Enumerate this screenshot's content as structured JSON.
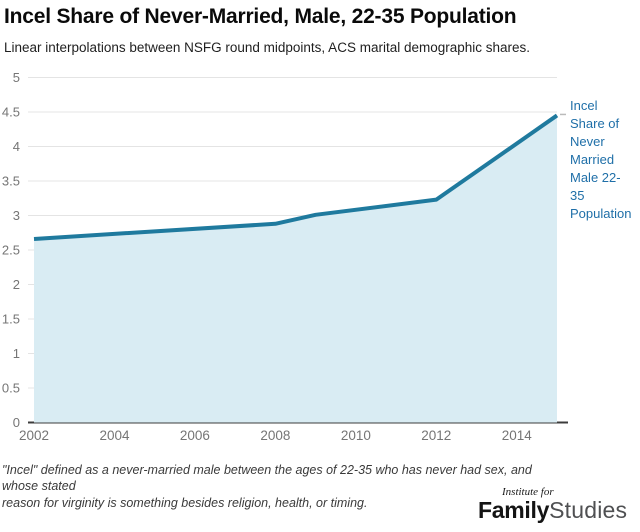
{
  "header": {
    "title": "Incel Share of Never-Married, Male, 22-35 Population",
    "subtitle": "Linear interpolations between NSFG round midpoints, ACS marital demographic shares."
  },
  "chart_data": {
    "type": "area",
    "title": "Incel Share of Never-Married, Male, 22-35 Population",
    "subtitle": "Linear interpolations between NSFG round midpoints, ACS marital demographic shares.",
    "series": [
      {
        "name": "Incel Share of Never Married Male 22-35 Population",
        "x": [
          2002,
          2008,
          2009,
          2012,
          2015
        ],
        "values": [
          2.66,
          2.88,
          3.01,
          3.23,
          4.45
        ]
      }
    ],
    "xlabel": "",
    "ylabel": "",
    "xlim": [
      2002,
      2015
    ],
    "ylim": [
      0,
      5
    ],
    "xticks": [
      2002,
      2004,
      2006,
      2008,
      2010,
      2012,
      2014
    ],
    "yticks": [
      0,
      0.5,
      1,
      1.5,
      2,
      2.5,
      3,
      3.5,
      4,
      4.5,
      5
    ],
    "grid": "horizontal",
    "legend_position": "right",
    "line_color": "#1f7a9e",
    "fill_color": "#d9ecf3",
    "gridline_color": "#e4e4e4",
    "axis_color": "#3c3c3c",
    "tick_label_color": "#757575",
    "legend_text_color": "#1f6fa8"
  },
  "legend": {
    "label": "Incel\nShare of\nNever\nMarried\nMale 22-\n35\nPopulation"
  },
  "footer": {
    "note": "\"Incel\" defined as a never-married male between the ages of 22-35 who has never had sex, and whose stated\nreason for virginity is something besides religion, health, or timing.",
    "logo_top": "Institute for",
    "logo_bold": "Family",
    "logo_light": "Studies"
  }
}
